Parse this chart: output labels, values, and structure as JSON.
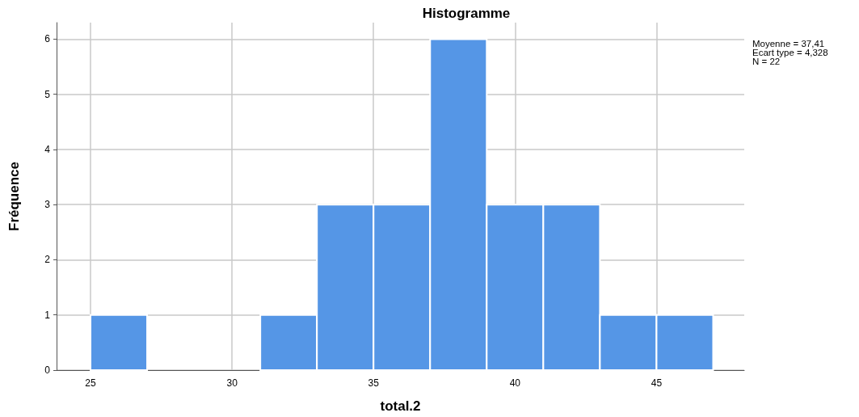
{
  "chart_data": {
    "type": "histogram",
    "title": "Histogramme",
    "xlabel": "total.2",
    "ylabel": "Fréquence",
    "bins": [
      25,
      27,
      29,
      31,
      33,
      35,
      37,
      39,
      41,
      43,
      45,
      47
    ],
    "values": [
      1,
      0,
      0,
      1,
      3,
      3,
      6,
      3,
      3,
      1,
      1
    ],
    "color": "#5596e6",
    "xlim": [
      23.8,
      48.1
    ],
    "xticks": [
      25,
      30,
      35,
      40,
      45
    ],
    "ylim": [
      0,
      6.3
    ],
    "yticks": [
      0,
      1,
      2,
      3,
      4,
      5,
      6
    ],
    "grid": true,
    "annotations": [
      "Moyenne = 37,41",
      "Ecart type = 4,328",
      "N = 22"
    ]
  }
}
